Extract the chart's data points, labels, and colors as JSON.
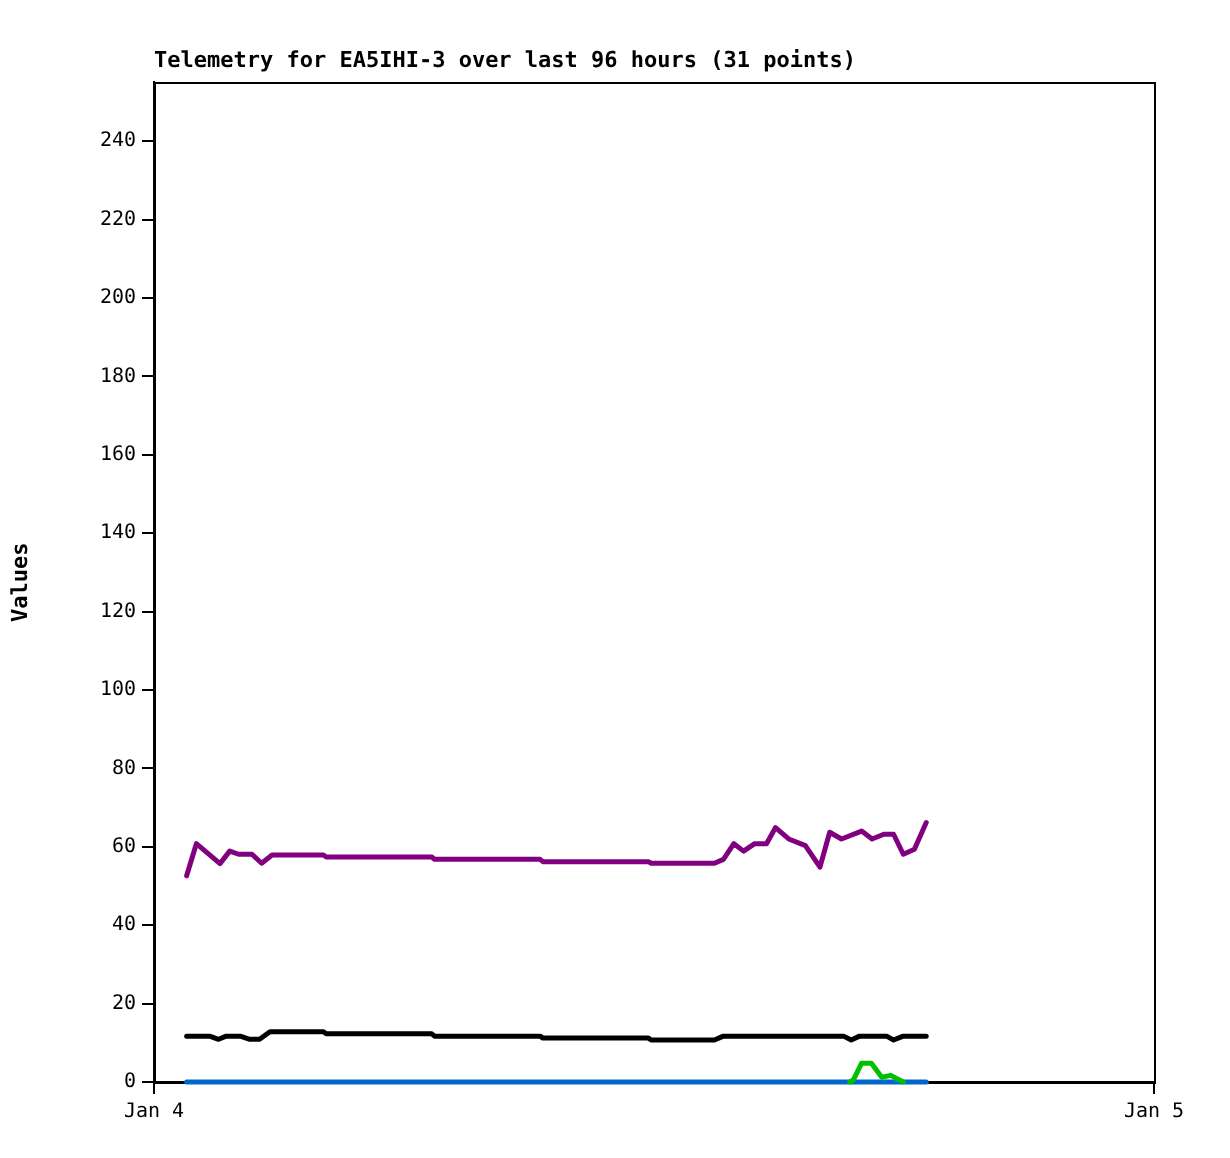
{
  "chart_data": {
    "type": "line",
    "title": "Telemetry for EA5IHI-3 over last 96 hours (31 points)",
    "ylabel": "Values",
    "xlim": [
      "--01-04T00:00",
      "--01-05T00:00"
    ],
    "xticks": [
      {
        "value": "--01-04T00:00",
        "label": "Jan 4"
      },
      {
        "value": "--01-05T00:00",
        "label": "Jan 5"
      }
    ],
    "ylim": [
      0,
      255
    ],
    "yticks": [
      0,
      20,
      40,
      60,
      80,
      100,
      120,
      140,
      160,
      180,
      200,
      220,
      240
    ],
    "grid": false,
    "legend": false,
    "marker": "none",
    "line_style": "solid",
    "series": [
      {
        "color": "#800080",
        "x": [
          "--01-04T00:47",
          "--01-04T01:01",
          "--01-04T01:35",
          "--01-04T01:49",
          "--01-04T02:02",
          "--01-04T02:21",
          "--01-04T02:35",
          "--01-04T02:50",
          "--01-04T04:04",
          "--01-04T04:08",
          "--01-04T06:40",
          "--01-04T06:44",
          "--01-04T09:16",
          "--01-04T09:20",
          "--01-04T11:52",
          "--01-04T11:56",
          "--01-04T13:27",
          "--01-04T13:40",
          "--01-04T13:55",
          "--01-04T14:09",
          "--01-04T14:25",
          "--01-04T14:42",
          "--01-04T14:55",
          "--01-04T15:14",
          "--01-04T15:38",
          "--01-04T15:59",
          "--01-04T16:13",
          "--01-04T16:30",
          "--01-04T16:59",
          "--01-04T17:14",
          "--01-04T17:31",
          "--01-04T17:45",
          "--01-04T17:59",
          "--01-04T18:15",
          "--01-04T18:32"
        ],
        "values": [
          52.6,
          60.8,
          55.7,
          58.9,
          58.1,
          58.1,
          55.8,
          57.9,
          57.9,
          57.4,
          57.4,
          56.8,
          56.8,
          56.2,
          56.2,
          55.8,
          55.8,
          56.8,
          60.8,
          58.9,
          60.8,
          60.8,
          64.9,
          62,
          60.3,
          54.8,
          63.7,
          62,
          64,
          62,
          63.2,
          63.2,
          58.1,
          59.4,
          66.2
        ]
      },
      {
        "color": "#000000",
        "x": [
          "--01-04T00:47",
          "--01-04T01:20",
          "--01-04T01:33",
          "--01-04T01:44",
          "--01-04T02:04",
          "--01-04T02:18",
          "--01-04T02:32",
          "--01-04T02:47",
          "--01-04T04:04",
          "--01-04T04:08",
          "--01-04T06:40",
          "--01-04T06:44",
          "--01-04T09:16",
          "--01-04T09:20",
          "--01-04T11:52",
          "--01-04T11:56",
          "--01-04T13:27",
          "--01-04T13:40",
          "--01-04T16:33",
          "--01-04T16:44",
          "--01-04T16:56",
          "--01-04T17:35",
          "--01-04T17:45",
          "--01-04T17:59",
          "--01-04T18:32"
        ],
        "values": [
          11.7,
          11.7,
          10.9,
          11.7,
          11.7,
          10.9,
          10.9,
          12.8,
          12.8,
          12.3,
          12.3,
          11.7,
          11.7,
          11.2,
          11.2,
          10.7,
          10.7,
          11.7,
          11.7,
          10.7,
          11.7,
          11.7,
          10.7,
          11.7,
          11.7
        ]
      },
      {
        "color": "#00c000",
        "x": [
          "--01-04T16:42",
          "--01-04T16:47",
          "--01-04T16:59",
          "--01-04T17:13",
          "--01-04T17:28",
          "--01-04T17:41",
          "--01-04T17:59"
        ],
        "values": [
          0,
          0.5,
          4.8,
          4.8,
          1.2,
          1.7,
          0
        ]
      },
      {
        "color": "#0066cc",
        "x": [
          "--01-04T00:47",
          "--01-04T18:32"
        ],
        "values": [
          0,
          0
        ]
      }
    ]
  }
}
